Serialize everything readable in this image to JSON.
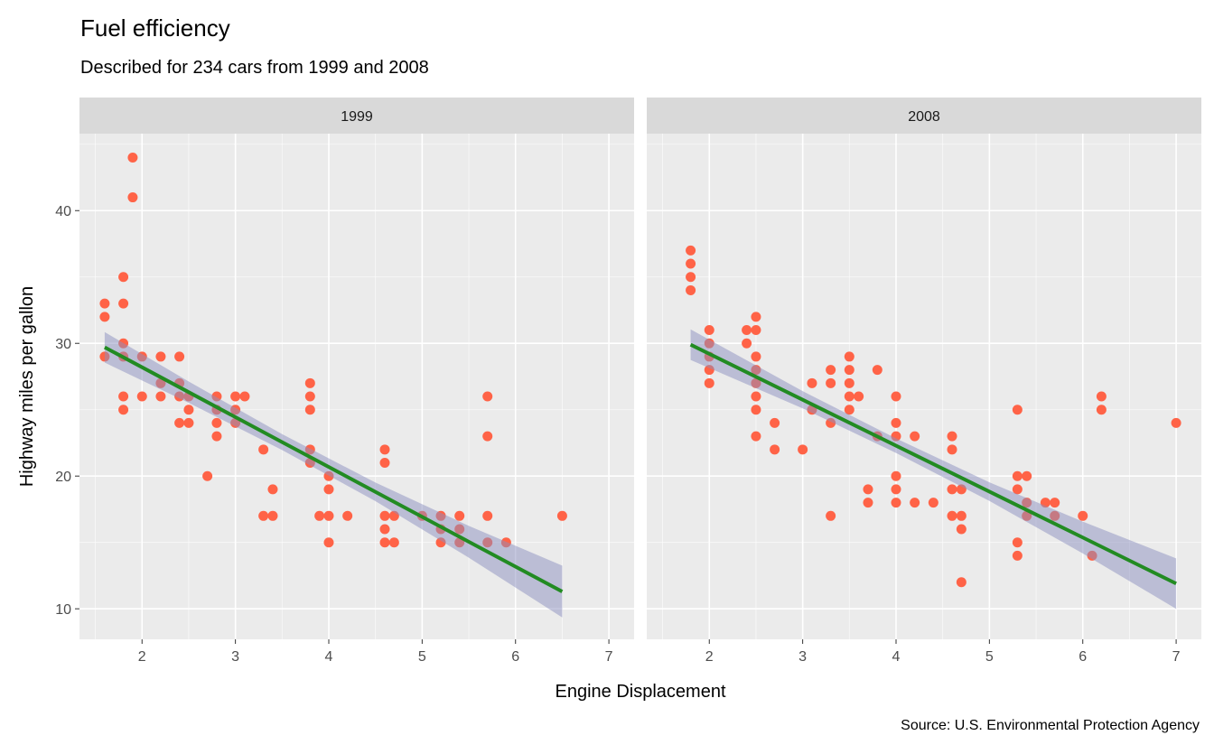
{
  "chart_data": {
    "type": "scatter",
    "title": "Fuel efficiency",
    "subtitle": "Described for 234 cars from 1999 and 2008",
    "xlabel": "Engine Displacement",
    "ylabel": "Highway miles per gallon",
    "caption": "Source: U.S. Environmental Protection Agency",
    "xlim": [
      1.33,
      7.27
    ],
    "ylim": [
      7.7,
      45.8
    ],
    "x_ticks": [
      2,
      3,
      4,
      5,
      6,
      7
    ],
    "y_ticks": [
      10,
      20,
      30,
      40
    ],
    "grid": true,
    "colors": {
      "points": "#FF6347",
      "smooth_line": "#228B22",
      "ribbon": "#8C90C0",
      "panel": "#EBEBEB",
      "strip": "#D9D9D9"
    },
    "facets": [
      {
        "label": "1999",
        "points": [
          [
            1.6,
            33
          ],
          [
            1.6,
            32
          ],
          [
            1.6,
            29
          ],
          [
            1.8,
            35
          ],
          [
            1.8,
            33
          ],
          [
            1.8,
            30
          ],
          [
            1.8,
            29
          ],
          [
            1.8,
            26
          ],
          [
            1.8,
            25
          ],
          [
            1.9,
            44
          ],
          [
            1.9,
            41
          ],
          [
            2.0,
            29
          ],
          [
            2.0,
            26
          ],
          [
            2.2,
            29
          ],
          [
            2.2,
            27
          ],
          [
            2.2,
            26
          ],
          [
            2.4,
            29
          ],
          [
            2.4,
            27
          ],
          [
            2.4,
            26
          ],
          [
            2.4,
            24
          ],
          [
            2.5,
            26
          ],
          [
            2.5,
            25
          ],
          [
            2.5,
            24
          ],
          [
            2.7,
            20
          ],
          [
            2.8,
            26
          ],
          [
            2.8,
            25
          ],
          [
            2.8,
            24
          ],
          [
            2.8,
            23
          ],
          [
            3.0,
            26
          ],
          [
            3.0,
            25
          ],
          [
            3.0,
            24
          ],
          [
            3.1,
            26
          ],
          [
            3.3,
            22
          ],
          [
            3.3,
            17
          ],
          [
            3.4,
            19
          ],
          [
            3.4,
            17
          ],
          [
            3.8,
            27
          ],
          [
            3.8,
            26
          ],
          [
            3.8,
            25
          ],
          [
            3.8,
            22
          ],
          [
            3.8,
            21
          ],
          [
            3.9,
            17
          ],
          [
            4.0,
            20
          ],
          [
            4.0,
            19
          ],
          [
            4.0,
            17
          ],
          [
            4.0,
            15
          ],
          [
            4.2,
            17
          ],
          [
            4.6,
            22
          ],
          [
            4.6,
            21
          ],
          [
            4.6,
            17
          ],
          [
            4.6,
            16
          ],
          [
            4.6,
            15
          ],
          [
            4.7,
            17
          ],
          [
            4.7,
            15
          ],
          [
            5.0,
            17
          ],
          [
            5.2,
            17
          ],
          [
            5.2,
            16
          ],
          [
            5.2,
            15
          ],
          [
            5.4,
            17
          ],
          [
            5.4,
            16
          ],
          [
            5.4,
            15
          ],
          [
            5.7,
            26
          ],
          [
            5.7,
            23
          ],
          [
            5.7,
            17
          ],
          [
            5.7,
            15
          ],
          [
            5.9,
            15
          ],
          [
            6.5,
            17
          ]
        ],
        "smooth": {
          "x": [
            1.6,
            2.5,
            3.5,
            4.5,
            5.5,
            6.5
          ],
          "fit": [
            29.7,
            26.32,
            22.56,
            18.81,
            15.05,
            11.3
          ],
          "lower": [
            28.55,
            25.52,
            21.96,
            18.11,
            13.85,
            9.35
          ],
          "upper": [
            30.85,
            27.12,
            23.16,
            19.51,
            16.25,
            13.25
          ]
        }
      },
      {
        "label": "2008",
        "points": [
          [
            1.8,
            37
          ],
          [
            1.8,
            36
          ],
          [
            1.8,
            35
          ],
          [
            1.8,
            34
          ],
          [
            2.0,
            31
          ],
          [
            2.0,
            30
          ],
          [
            2.0,
            29
          ],
          [
            2.0,
            28
          ],
          [
            2.0,
            27
          ],
          [
            2.4,
            31
          ],
          [
            2.4,
            30
          ],
          [
            2.5,
            32
          ],
          [
            2.5,
            31
          ],
          [
            2.5,
            29
          ],
          [
            2.5,
            28
          ],
          [
            2.5,
            27
          ],
          [
            2.5,
            26
          ],
          [
            2.5,
            25
          ],
          [
            2.5,
            23
          ],
          [
            2.7,
            24
          ],
          [
            2.7,
            22
          ],
          [
            3.0,
            22
          ],
          [
            3.1,
            27
          ],
          [
            3.1,
            25
          ],
          [
            3.3,
            28
          ],
          [
            3.3,
            27
          ],
          [
            3.3,
            24
          ],
          [
            3.3,
            17
          ],
          [
            3.5,
            29
          ],
          [
            3.5,
            28
          ],
          [
            3.5,
            27
          ],
          [
            3.5,
            26
          ],
          [
            3.5,
            25
          ],
          [
            3.6,
            26
          ],
          [
            3.7,
            19
          ],
          [
            3.7,
            18
          ],
          [
            3.8,
            28
          ],
          [
            3.8,
            23
          ],
          [
            4.0,
            26
          ],
          [
            4.0,
            24
          ],
          [
            4.0,
            23
          ],
          [
            4.0,
            20
          ],
          [
            4.0,
            19
          ],
          [
            4.0,
            18
          ],
          [
            4.2,
            23
          ],
          [
            4.2,
            18
          ],
          [
            4.4,
            18
          ],
          [
            4.6,
            23
          ],
          [
            4.6,
            22
          ],
          [
            4.6,
            19
          ],
          [
            4.6,
            17
          ],
          [
            4.7,
            19
          ],
          [
            4.7,
            17
          ],
          [
            4.7,
            16
          ],
          [
            4.7,
            12
          ],
          [
            5.3,
            25
          ],
          [
            5.3,
            20
          ],
          [
            5.3,
            19
          ],
          [
            5.3,
            15
          ],
          [
            5.3,
            14
          ],
          [
            5.4,
            20
          ],
          [
            5.4,
            18
          ],
          [
            5.4,
            17
          ],
          [
            5.6,
            18
          ],
          [
            5.7,
            18
          ],
          [
            5.7,
            17
          ],
          [
            6.0,
            17
          ],
          [
            6.1,
            14
          ],
          [
            6.2,
            26
          ],
          [
            6.2,
            25
          ],
          [
            7.0,
            24
          ]
        ],
        "smooth": {
          "x": [
            1.8,
            3.0,
            4.0,
            5.0,
            6.0,
            7.0
          ],
          "fit": [
            29.9,
            25.75,
            22.29,
            18.83,
            15.37,
            11.9
          ],
          "lower": [
            28.75,
            25.1,
            21.74,
            18.13,
            14.17,
            10.0
          ],
          "upper": [
            31.05,
            26.4,
            22.84,
            19.53,
            16.57,
            13.8
          ]
        }
      }
    ]
  }
}
